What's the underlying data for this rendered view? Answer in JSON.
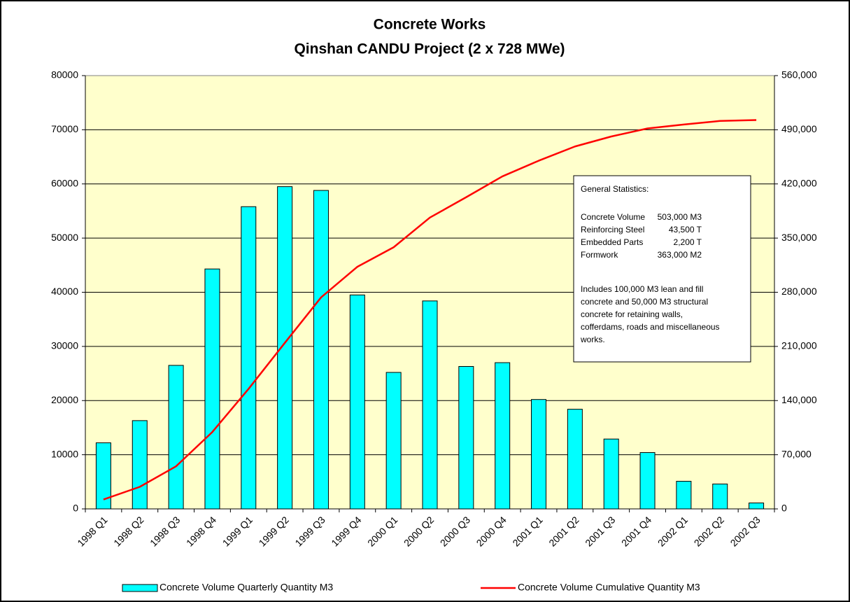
{
  "chart_data": {
    "type": "bar",
    "title": "Concrete Works",
    "subtitle": "Qinshan CANDU Project (2 x 728 MWe)",
    "categories": [
      "1998 Q1",
      "1998 Q2",
      "1998 Q3",
      "1998 Q4",
      "1999 Q1",
      "1999 Q2",
      "1999 Q3",
      "1999 Q4",
      "2000 Q1",
      "2000 Q2",
      "2000 Q3",
      "2000 Q4",
      "2001 Q1",
      "2001 Q2",
      "2001 Q3",
      "2001 Q4",
      "2002 Q1",
      "2002 Q2",
      "2002 Q3"
    ],
    "series": [
      {
        "name": "Concrete Volume Quarterly Quantity M3",
        "type": "bar",
        "color": "#00ffff",
        "values": [
          12200,
          16300,
          26500,
          44300,
          55800,
          59500,
          58800,
          39500,
          25200,
          38400,
          26300,
          27000,
          20200,
          18400,
          12900,
          10400,
          5100,
          4600,
          1100
        ]
      },
      {
        "name": "Concrete Volume Cumulative Quantity M3",
        "type": "line",
        "color": "#ff0000",
        "axis": "y2",
        "values": [
          12200,
          28500,
          55000,
          99300,
          155100,
          214600,
          273400,
          312900,
          338100,
          376500,
          402800,
          429800,
          450000,
          468400,
          481300,
          491700,
          496800,
          501400,
          502500
        ]
      }
    ],
    "ylim": [
      0,
      80000
    ],
    "yticks": [
      0,
      10000,
      20000,
      30000,
      40000,
      50000,
      60000,
      70000,
      80000
    ],
    "y2lim": [
      0,
      560000
    ],
    "y2ticks": [
      0,
      {
        "value": 70000,
        "label": "70,000"
      },
      {
        "value": 140000,
        "label": "140,000"
      },
      {
        "value": 210000,
        "label": "210,000"
      },
      {
        "value": 280000,
        "label": "280,000"
      },
      {
        "value": 350000,
        "label": "350,000"
      },
      {
        "value": 420000,
        "label": "420,000"
      },
      {
        "value": 490000,
        "label": "490,000"
      },
      {
        "value": 560000,
        "label": "560,000"
      }
    ],
    "grid": true,
    "legend": "bottom",
    "annotation": {
      "heading": "General Statistics:",
      "rows": [
        [
          "Concrete Volume",
          "503,000 M3"
        ],
        [
          "Reinforcing Steel",
          "43,500 T"
        ],
        [
          "Embedded Parts",
          "2,200 T"
        ],
        [
          "Formwork",
          "363,000 M2"
        ]
      ],
      "note": [
        "Includes 100,000 M3 lean and fill",
        "concrete and 50,000 M3 structural",
        "concrete for retaining walls,",
        "cofferdams, roads and miscellaneous",
        "works."
      ]
    }
  }
}
